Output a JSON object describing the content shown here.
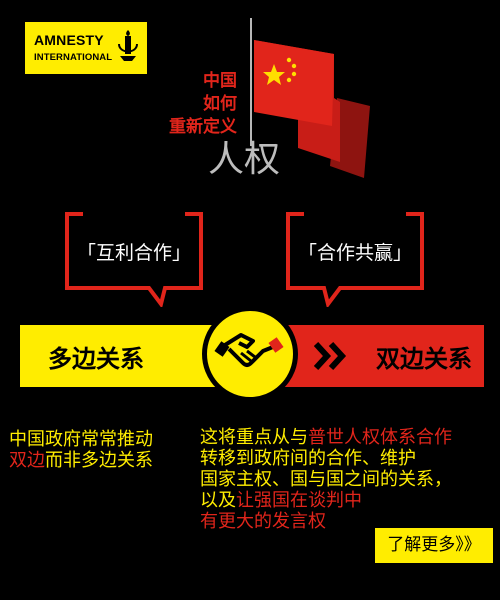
{
  "logo": {
    "line1": "AMNESTY",
    "line2": "INTERNATIONAL"
  },
  "headline": {
    "line1": "中国",
    "line2": "如何",
    "line3": "重新定义",
    "line4": "人权"
  },
  "bubbles": {
    "left": "「互利合作」",
    "right": "「合作共赢」"
  },
  "banner": {
    "left": "多边关系",
    "right_arrows": "»",
    "right": "双边关系"
  },
  "left_text": {
    "l1": "中国政府常常推动",
    "l2_red": "双边",
    "l2_rest": "而非多边关系"
  },
  "right_text": {
    "l1_a": "这将重点从与",
    "l1_red": "普世人权体系合作",
    "l2": "转移到政府间的合作、维护",
    "l3": "国家主权、国与国之间的关系，",
    "l4_a": "以及",
    "l4_red": "让强国在谈判中",
    "l5_red": "有更大的发言权"
  },
  "more_button": "了解更多》》",
  "colors": {
    "yellow": "#ffed00",
    "red": "#e1251b",
    "background": "#000000"
  }
}
